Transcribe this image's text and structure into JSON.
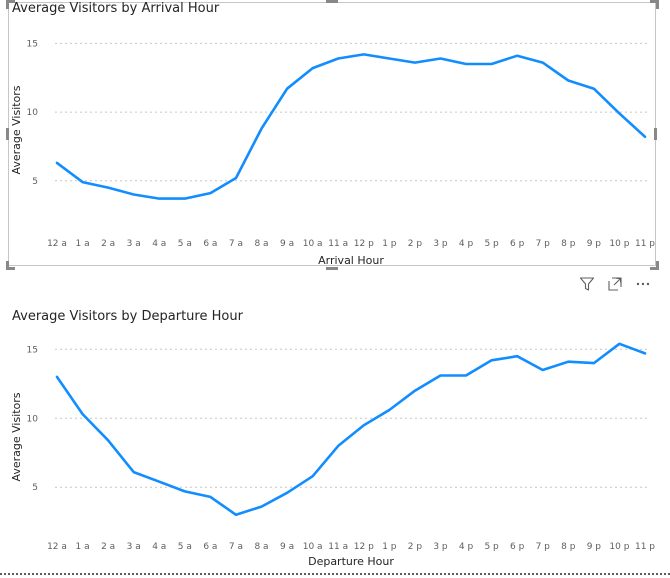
{
  "icons": {
    "filter": "filter-icon",
    "focus_mode": "focus-mode-icon",
    "more_options": "more-options-icon"
  },
  "colors": {
    "line": "#118DFF",
    "gridline": "#C8C6C4",
    "text": "#252423",
    "tick": "#605E5C"
  },
  "chart_data": [
    {
      "type": "line",
      "title": "Average Visitors by Arrival Hour",
      "xlabel": "Arrival Hour",
      "ylabel": "Average Visitors",
      "categories": [
        "12 a",
        "1 a",
        "2 a",
        "3 a",
        "4 a",
        "5 a",
        "6 a",
        "7 a",
        "8 a",
        "9 a",
        "10 a",
        "11 a",
        "12 p",
        "1 p",
        "2 p",
        "3 p",
        "4 p",
        "5 p",
        "6 p",
        "7 p",
        "8 p",
        "9 p",
        "10 p",
        "11 p"
      ],
      "yticks": [
        5,
        10,
        15
      ],
      "ylim": [
        2,
        16.7
      ],
      "grid": true,
      "series": [
        {
          "values": [
            6.3,
            4.9,
            4.5,
            4.0,
            3.7,
            3.7,
            4.1,
            5.2,
            8.8,
            11.7,
            13.2,
            13.9,
            14.2,
            13.9,
            13.6,
            13.9,
            13.5,
            13.5,
            14.1,
            13.6,
            12.3,
            11.7,
            9.9,
            8.2
          ]
        }
      ]
    },
    {
      "type": "line",
      "title": "Average Visitors by Departure Hour",
      "xlabel": "Departure Hour",
      "ylabel": "Average Visitors",
      "categories": [
        "12 a",
        "1 a",
        "2 a",
        "3 a",
        "4 a",
        "5 a",
        "6 a",
        "7 a",
        "8 a",
        "9 a",
        "10 a",
        "11 a",
        "12 p",
        "1 p",
        "2 p",
        "3 p",
        "4 p",
        "5 p",
        "6 p",
        "7 p",
        "8 p",
        "9 p",
        "10 p",
        "11 p"
      ],
      "yticks": [
        5,
        10,
        15
      ],
      "ylim": [
        1.9,
        16.4
      ],
      "grid": true,
      "series": [
        {
          "values": [
            13.0,
            10.3,
            8.4,
            6.1,
            5.4,
            4.7,
            4.3,
            3.0,
            3.6,
            4.6,
            5.8,
            8.0,
            9.5,
            10.6,
            12.0,
            13.1,
            13.1,
            14.2,
            14.5,
            13.5,
            14.1,
            14.0,
            15.4,
            14.7
          ]
        }
      ]
    }
  ]
}
